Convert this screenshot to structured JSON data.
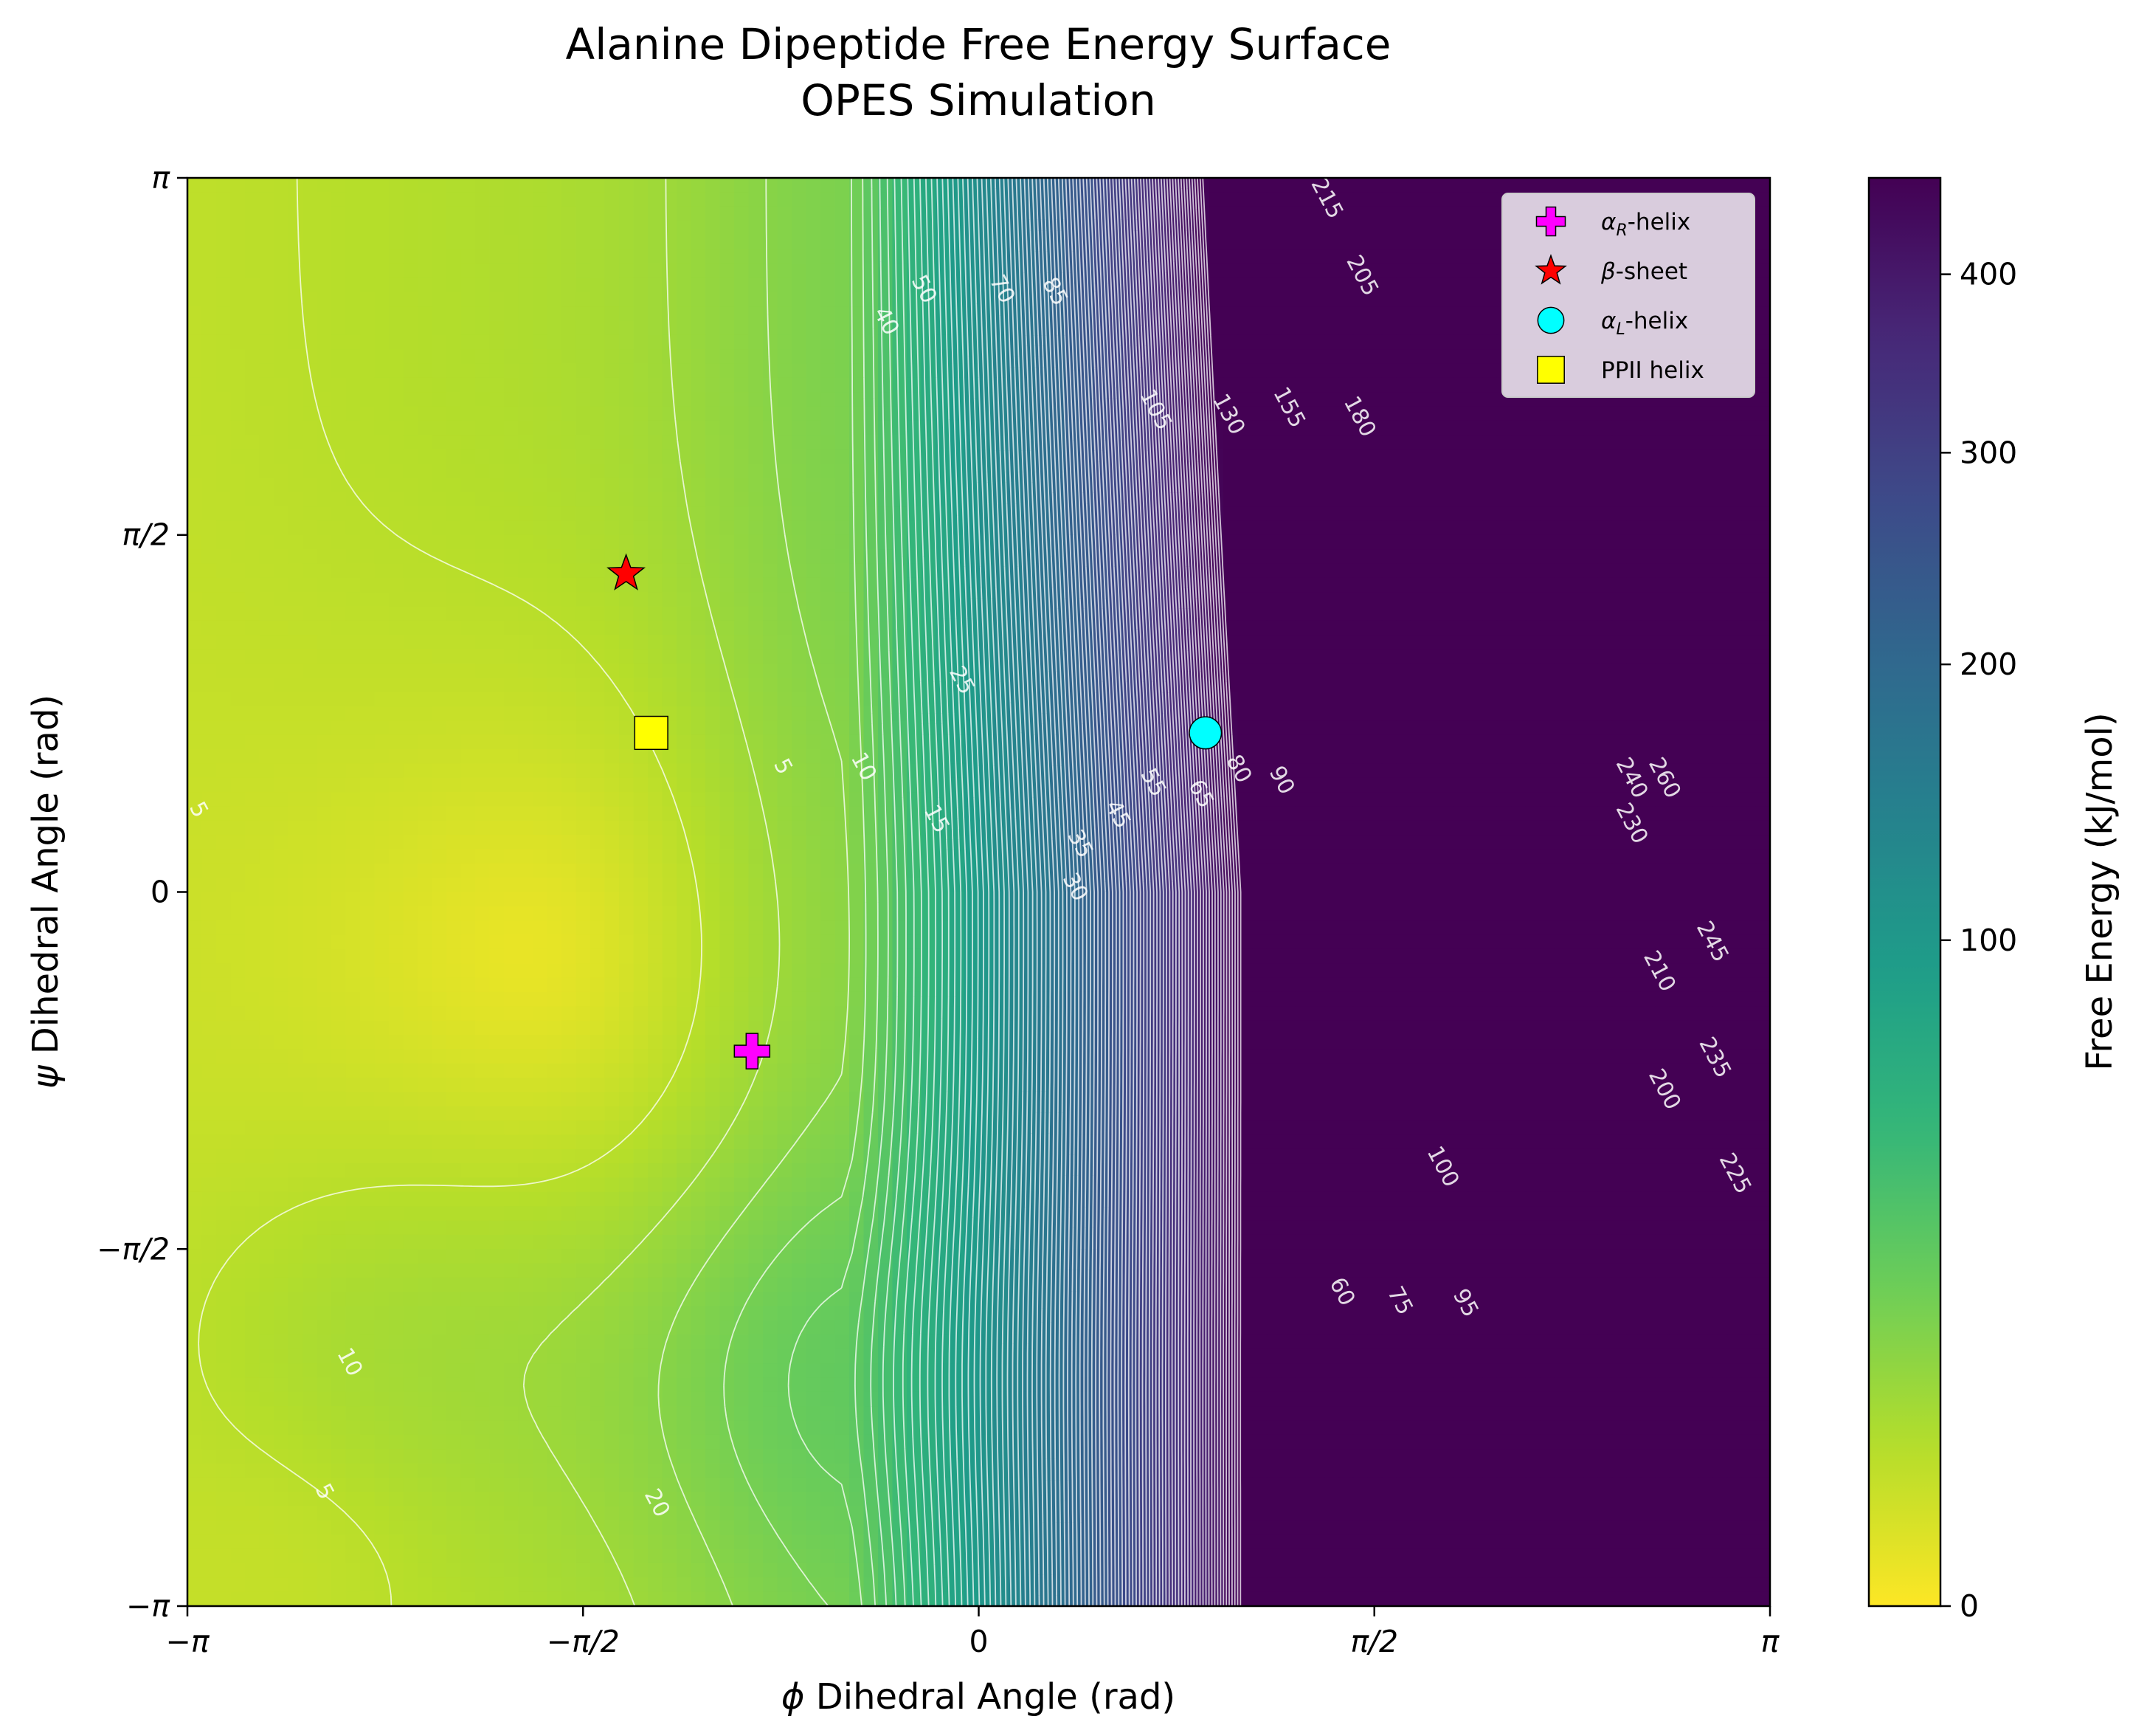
{
  "chart_data": {
    "type": "heatmap",
    "title": "Alanine Dipeptide Free Energy Surface",
    "subtitle": "OPES Simulation",
    "xlabel_symbol": "ϕ",
    "xlabel": " Dihedral Angle (rad)",
    "ylabel_symbol": "ψ",
    "ylabel": " Dihedral Angle (rad)",
    "xlim": [
      -3.14159,
      3.14159
    ],
    "ylim": [
      -3.14159,
      3.14159
    ],
    "x_ticks": [
      {
        "value": -3.14159,
        "label": "−π"
      },
      {
        "value": -1.5708,
        "label": "−π/2"
      },
      {
        "value": 0,
        "label": "0"
      },
      {
        "value": 1.5708,
        "label": "π/2"
      },
      {
        "value": 3.14159,
        "label": "π"
      }
    ],
    "y_ticks": [
      {
        "value": -3.14159,
        "label": "−π"
      },
      {
        "value": -1.5708,
        "label": "−π/2"
      },
      {
        "value": 0,
        "label": "0"
      },
      {
        "value": 1.5708,
        "label": "π/2"
      },
      {
        "value": 3.14159,
        "label": "π"
      }
    ],
    "colorbar": {
      "label": "Free Energy (kJ/mol)",
      "range": [
        0,
        460
      ],
      "scale": "sqrt",
      "colormap": "viridis_r",
      "ticks": [
        {
          "value": 0,
          "label": "0"
        },
        {
          "value": 100,
          "label": "100"
        },
        {
          "value": 200,
          "label": "200"
        },
        {
          "value": 300,
          "label": "300"
        },
        {
          "value": 400,
          "label": "400"
        }
      ]
    },
    "surface": {
      "global_minimum": {
        "phi": -1.4,
        "psi": -0.3,
        "value": 0
      },
      "secondary_minimum": {
        "phi": -2.6,
        "psi": -2.85,
        "value": 3
      }
    },
    "contour_labels": [
      {
        "text": "5",
        "phi": -0.78,
        "psi": 0.55
      },
      {
        "text": "10",
        "phi": -0.46,
        "psi": 0.55
      },
      {
        "text": "15",
        "phi": -0.17,
        "psi": 0.32
      },
      {
        "text": "25",
        "phi": -0.07,
        "psi": 0.93
      },
      {
        "text": "30",
        "phi": 0.38,
        "psi": 0.02
      },
      {
        "text": "35",
        "phi": 0.4,
        "psi": 0.21
      },
      {
        "text": "40",
        "phi": -0.37,
        "psi": 2.51
      },
      {
        "text": "45",
        "phi": 0.55,
        "psi": 0.34
      },
      {
        "text": "50",
        "phi": -0.22,
        "psi": 2.65
      },
      {
        "text": "55",
        "phi": 0.69,
        "psi": 0.48
      },
      {
        "text": "65",
        "phi": 0.88,
        "psi": 0.43
      },
      {
        "text": "70",
        "phi": 0.09,
        "psi": 2.65
      },
      {
        "text": "80",
        "phi": 1.03,
        "psi": 0.54
      },
      {
        "text": "85",
        "phi": 0.3,
        "psi": 2.64
      },
      {
        "text": "90",
        "phi": 1.2,
        "psi": 0.49
      },
      {
        "text": "105",
        "phi": 0.7,
        "psi": 2.12
      },
      {
        "text": "130",
        "phi": 0.99,
        "psi": 2.1
      },
      {
        "text": "155",
        "phi": 1.23,
        "psi": 2.13
      },
      {
        "text": "180",
        "phi": 1.51,
        "psi": 2.09
      },
      {
        "text": "205",
        "phi": 1.52,
        "psi": 2.71
      },
      {
        "text": "215",
        "phi": 1.38,
        "psi": 3.05
      },
      {
        "text": "210",
        "phi": 2.7,
        "psi": -0.35
      },
      {
        "text": "200",
        "phi": 2.72,
        "psi": -0.87
      },
      {
        "text": "230",
        "phi": 2.59,
        "psi": 0.3
      },
      {
        "text": "240",
        "phi": 2.59,
        "psi": 0.5
      },
      {
        "text": "260",
        "phi": 2.72,
        "psi": 0.5
      },
      {
        "text": "245",
        "phi": 2.91,
        "psi": -0.22
      },
      {
        "text": "235",
        "phi": 2.92,
        "psi": -0.73
      },
      {
        "text": "225",
        "phi": 3.0,
        "psi": -1.24
      },
      {
        "text": "60",
        "phi": 1.44,
        "psi": -1.76
      },
      {
        "text": "75",
        "phi": 1.67,
        "psi": -1.8
      },
      {
        "text": "95",
        "phi": 1.93,
        "psi": -1.81
      },
      {
        "text": "100",
        "phi": 1.84,
        "psi": -1.21
      },
      {
        "text": "20",
        "phi": -1.28,
        "psi": -2.69
      },
      {
        "text": "10",
        "phi": -2.5,
        "psi": -2.07
      },
      {
        "text": "5",
        "phi": -2.6,
        "psi": -2.64
      },
      {
        "text": "5",
        "phi": -3.1,
        "psi": 0.36
      }
    ],
    "markers": [
      {
        "name": "αR-helix",
        "label_main": "α",
        "label_sub": "R",
        "label_rest": "-helix",
        "symbol": "plus",
        "color": "#ff00ff",
        "phi": -0.9,
        "psi": -0.7
      },
      {
        "name": "β-sheet",
        "label_main": "β",
        "label_sub": "",
        "label_rest": "-sheet",
        "symbol": "star",
        "color": "#ff0000",
        "phi": -1.4,
        "psi": 1.4
      },
      {
        "name": "αL-helix",
        "label_main": "α",
        "label_sub": "L",
        "label_rest": "-helix",
        "symbol": "circle",
        "color": "#00ffff",
        "phi": 0.9,
        "psi": 0.7
      },
      {
        "name": "PPII helix",
        "label_main": "PPII helix",
        "label_sub": "",
        "label_rest": "",
        "symbol": "square",
        "color": "#ffff00",
        "phi": -1.3,
        "psi": 0.7
      }
    ],
    "legend_position": "top-right",
    "grid": false
  }
}
